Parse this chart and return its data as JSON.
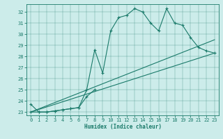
{
  "xlabel": "Humidex (Indice chaleur)",
  "bg_color": "#ccecea",
  "line_color": "#1a7a6a",
  "xlim": [
    -0.5,
    23.5
  ],
  "ylim": [
    22.7,
    32.7
  ],
  "xticks": [
    0,
    1,
    2,
    3,
    4,
    5,
    6,
    7,
    8,
    9,
    10,
    11,
    12,
    13,
    14,
    15,
    16,
    17,
    18,
    19,
    20,
    21,
    22,
    23
  ],
  "yticks": [
    23,
    24,
    25,
    26,
    27,
    28,
    29,
    30,
    31,
    32
  ],
  "line1_x": [
    0,
    1,
    2,
    3,
    4,
    5,
    6,
    7,
    8,
    9,
    10,
    11,
    12,
    13,
    14,
    15,
    16,
    17,
    18,
    19,
    20,
    21,
    22,
    23
  ],
  "line1_y": [
    23.7,
    23.0,
    23.0,
    23.1,
    23.2,
    23.3,
    23.4,
    25.0,
    28.6,
    26.5,
    30.3,
    31.5,
    31.7,
    32.3,
    32.0,
    31.0,
    30.3,
    32.3,
    31.0,
    30.8,
    29.7,
    28.8,
    28.5,
    28.3
  ],
  "line2_x": [
    0,
    1,
    2,
    3,
    4,
    5,
    6,
    7,
    8,
    9,
    10,
    11,
    12,
    13,
    14,
    15,
    16,
    17,
    18,
    19,
    20,
    21,
    22,
    23
  ],
  "line2_y": [
    23.0,
    23.0,
    23.0,
    23.1,
    23.2,
    23.3,
    23.4,
    24.4,
    25.0,
    null,
    null,
    null,
    null,
    null,
    null,
    null,
    null,
    null,
    null,
    null,
    null,
    null,
    null,
    null
  ],
  "line3_x": [
    0,
    23
  ],
  "line3_y": [
    23.0,
    29.5
  ],
  "line4_x": [
    0,
    23
  ],
  "line4_y": [
    23.0,
    28.3
  ]
}
